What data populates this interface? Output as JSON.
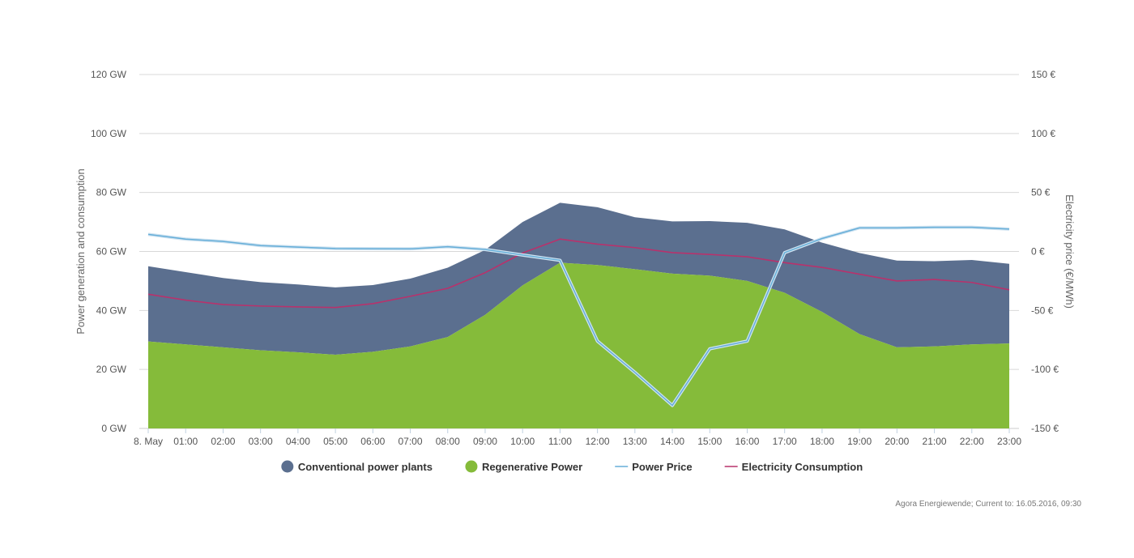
{
  "chart_data": {
    "type": "area",
    "categories": [
      "8. May",
      "01:00",
      "02:00",
      "03:00",
      "04:00",
      "05:00",
      "06:00",
      "07:00",
      "08:00",
      "09:00",
      "10:00",
      "11:00",
      "12:00",
      "13:00",
      "14:00",
      "15:00",
      "16:00",
      "17:00",
      "18:00",
      "19:00",
      "20:00",
      "21:00",
      "22:00",
      "23:00"
    ],
    "y_left": {
      "label": "Power generation and consumption",
      "ylim": [
        0,
        120
      ],
      "ticks": [
        0,
        20,
        40,
        60,
        80,
        100,
        120
      ],
      "tick_labels": [
        "0 GW",
        "20 GW",
        "40 GW",
        "60 GW",
        "80 GW",
        "100 GW",
        "120 GW"
      ]
    },
    "y_right": {
      "label": "Electricity price (€/MWh)",
      "ylim": [
        -150,
        150
      ],
      "ticks": [
        -150,
        -100,
        -50,
        0,
        50,
        100,
        150
      ],
      "tick_labels": [
        "-150 €",
        "-100 €",
        "-50 €",
        "0 €",
        "50 €",
        "100 €",
        "150 €"
      ]
    },
    "grid": true,
    "legend_position": "bottom-center",
    "series": [
      {
        "name": "Regenerative Power",
        "type": "area",
        "axis": "left",
        "stack": true,
        "color": "#85bb3a",
        "values": [
          29.5,
          28.5,
          27.5,
          26.5,
          25.8,
          25.0,
          26.0,
          27.8,
          31.0,
          38.5,
          48.5,
          56.2,
          55.4,
          54.0,
          52.5,
          51.8,
          50.0,
          46.0,
          39.5,
          32.0,
          27.5,
          27.8,
          28.5,
          28.8
        ]
      },
      {
        "name": "Conventional power plants",
        "type": "area",
        "axis": "left",
        "stack": true,
        "color": "#5b6f8f",
        "values": [
          25.5,
          24.5,
          23.5,
          23.1,
          23.0,
          22.8,
          22.6,
          23.0,
          23.5,
          22.0,
          21.5,
          20.3,
          19.6,
          17.6,
          17.7,
          18.5,
          19.7,
          21.5,
          23.5,
          27.5,
          29.4,
          28.9,
          28.6,
          27.0
        ]
      },
      {
        "name": "Power Price",
        "type": "line",
        "axis": "right",
        "color": "#66aed8",
        "values": [
          14.5,
          10.5,
          8.5,
          5.0,
          3.7,
          2.5,
          2.3,
          2.2,
          4.0,
          1.7,
          -3.0,
          -7.5,
          -76.0,
          -102.5,
          -130.5,
          -82.5,
          -76.0,
          -1.0,
          11.0,
          20.0,
          20.0,
          20.5,
          20.5,
          19.0
        ]
      },
      {
        "name": "Electricity Consumption",
        "type": "line",
        "axis": "left",
        "color": "#b8326c",
        "values": [
          45.5,
          43.5,
          42.0,
          41.5,
          41.2,
          41.0,
          42.3,
          44.8,
          47.5,
          52.8,
          59.5,
          64.2,
          62.5,
          61.3,
          59.6,
          59.0,
          58.2,
          56.2,
          54.6,
          52.3,
          50.0,
          50.5,
          49.5,
          47.0
        ]
      }
    ],
    "legend": [
      {
        "name": "Conventional power plants",
        "symbol": "circle",
        "color": "#5b6f8f"
      },
      {
        "name": "Regenerative Power",
        "symbol": "circle",
        "color": "#85bb3a"
      },
      {
        "name": "Power Price",
        "symbol": "line",
        "color": "#66aed8"
      },
      {
        "name": "Electricity Consumption",
        "symbol": "line",
        "color": "#b8326c"
      }
    ],
    "credit": "Agora Energiewende; Current to: 16.05.2016, 09:30"
  }
}
